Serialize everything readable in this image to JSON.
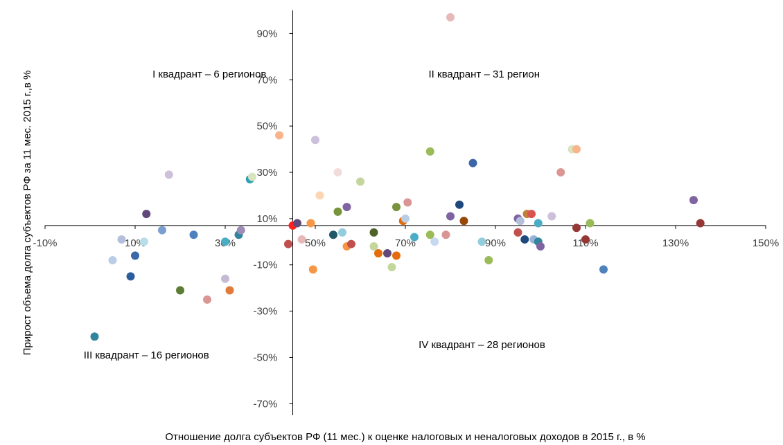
{
  "chart_data": {
    "type": "scatter",
    "xlabel": "Отношение долга субъектов РФ (11 мес.) к оценке налоговых и неналоговых доходов в 2015 г., в %",
    "ylabel": "Прирост объема долга субъектов РФ за 11 мес. 2015 г.,в %",
    "xlim": [
      -10,
      150
    ],
    "ylim": [
      -75,
      100
    ],
    "x_ticks": [
      -10,
      10,
      30,
      50,
      70,
      90,
      110,
      130,
      150
    ],
    "x_tick_labels": [
      "-10%",
      "10%",
      "30%",
      "50%",
      "70%",
      "90%",
      "110%",
      "130%",
      "150%"
    ],
    "y_ticks": [
      -70,
      -50,
      -30,
      -10,
      10,
      30,
      50,
      70,
      90
    ],
    "y_tick_labels": [
      "-70%",
      "-50%",
      "-30%",
      "-10%",
      "10%",
      "30%",
      "50%",
      "70%",
      "90%"
    ],
    "x_axis_crosses_y_at": 7,
    "y_axis_crosses_x_at": 45,
    "grid": false,
    "legend": "none",
    "quadrant_labels": [
      {
        "text": "I квадрант – 6 регионов",
        "x": 26.5,
        "y": 71
      },
      {
        "text": "II квадрант – 31 регион",
        "x": 87.5,
        "y": 71
      },
      {
        "text": "III квадрант – 16 регионов",
        "x": 12.5,
        "y": -50.5
      },
      {
        "text": "IV квадрант – 28 регионов",
        "x": 87,
        "y": -46
      }
    ],
    "points": [
      {
        "x": 1,
        "y": -41,
        "color": "#31859c"
      },
      {
        "x": 5,
        "y": -8,
        "color": "#b9cde5"
      },
      {
        "x": 7,
        "y": 1,
        "color": "#b3bfdb"
      },
      {
        "x": 9,
        "y": -15,
        "color": "#2e5d9e"
      },
      {
        "x": 10,
        "y": -6,
        "color": "#3b67a9"
      },
      {
        "x": 12,
        "y": 0,
        "color": "#b7dee8"
      },
      {
        "x": 12.5,
        "y": 12,
        "color": "#60497a"
      },
      {
        "x": 16,
        "y": 5,
        "color": "#7ba0cf"
      },
      {
        "x": 17.5,
        "y": 29,
        "color": "#ccc0da"
      },
      {
        "x": 20,
        "y": -21,
        "color": "#5b7d35"
      },
      {
        "x": 23,
        "y": 3,
        "color": "#4f81bd"
      },
      {
        "x": 26,
        "y": -25,
        "color": "#d99694"
      },
      {
        "x": 30,
        "y": -16,
        "color": "#c6b9d4"
      },
      {
        "x": 30,
        "y": 0,
        "color": "#4bacc6"
      },
      {
        "x": 31,
        "y": -21,
        "color": "#e07b39"
      },
      {
        "x": 33,
        "y": 3,
        "color": "#31859c"
      },
      {
        "x": 33.5,
        "y": 5,
        "color": "#9e8bb6"
      },
      {
        "x": 35.5,
        "y": 27,
        "color": "#2ea0b5"
      },
      {
        "x": 36,
        "y": 28,
        "color": "#d7e4bd"
      },
      {
        "x": 42,
        "y": 46,
        "color": "#fab48c"
      },
      {
        "x": 44,
        "y": -1,
        "color": "#c0504d"
      },
      {
        "x": 45,
        "y": 7,
        "color": "#ff2020"
      },
      {
        "x": 46,
        "y": 8,
        "color": "#604a7b"
      },
      {
        "x": 47,
        "y": 1,
        "color": "#e6b9b8"
      },
      {
        "x": 49.5,
        "y": -12,
        "color": "#f79646"
      },
      {
        "x": 49,
        "y": 8,
        "color": "#f79646"
      },
      {
        "x": 50,
        "y": 44,
        "color": "#ccc0da"
      },
      {
        "x": 51,
        "y": 20,
        "color": "#fcd5b5"
      },
      {
        "x": 54,
        "y": 3,
        "color": "#205867"
      },
      {
        "x": 55,
        "y": 13,
        "color": "#77933c"
      },
      {
        "x": 55,
        "y": 30,
        "color": "#f2dcdb"
      },
      {
        "x": 56,
        "y": 4,
        "color": "#93cddd"
      },
      {
        "x": 57,
        "y": 15,
        "color": "#8064a2"
      },
      {
        "x": 57,
        "y": -2,
        "color": "#f79646"
      },
      {
        "x": 58,
        "y": -1,
        "color": "#c0504d"
      },
      {
        "x": 60,
        "y": 26,
        "color": "#c3d69b"
      },
      {
        "x": 63,
        "y": 4,
        "color": "#4f6228"
      },
      {
        "x": 63,
        "y": -2,
        "color": "#c3d69b"
      },
      {
        "x": 64,
        "y": -5,
        "color": "#e46c0a"
      },
      {
        "x": 66,
        "y": -5,
        "color": "#604a7b"
      },
      {
        "x": 67,
        "y": -11,
        "color": "#c3d69b"
      },
      {
        "x": 68,
        "y": 15,
        "color": "#77933c"
      },
      {
        "x": 68,
        "y": -6,
        "color": "#e46c0a"
      },
      {
        "x": 69.5,
        "y": 9,
        "color": "#e46c0a"
      },
      {
        "x": 70,
        "y": 10,
        "color": "#b9cde5"
      },
      {
        "x": 70.5,
        "y": 17,
        "color": "#d99694"
      },
      {
        "x": 72,
        "y": 2,
        "color": "#4bacc6"
      },
      {
        "x": 75.5,
        "y": 39,
        "color": "#9bbb59"
      },
      {
        "x": 75.5,
        "y": 3,
        "color": "#9bbb59"
      },
      {
        "x": 76.5,
        "y": 0,
        "color": "#c6d9f1"
      },
      {
        "x": 79,
        "y": 3,
        "color": "#d99694"
      },
      {
        "x": 80,
        "y": 97,
        "color": "#e6b9b8"
      },
      {
        "x": 80,
        "y": 11,
        "color": "#8064a2"
      },
      {
        "x": 82,
        "y": 16,
        "color": "#1f497d"
      },
      {
        "x": 83,
        "y": 9,
        "color": "#974806"
      },
      {
        "x": 85,
        "y": 34,
        "color": "#3b67a9"
      },
      {
        "x": 87,
        "y": 0,
        "color": "#93cddd"
      },
      {
        "x": 88.5,
        "y": -8,
        "color": "#9bbb59"
      },
      {
        "x": 95,
        "y": 10,
        "color": "#8064a2"
      },
      {
        "x": 95,
        "y": 4,
        "color": "#c0504d"
      },
      {
        "x": 95.5,
        "y": 9,
        "color": "#b3bfdb"
      },
      {
        "x": 96.5,
        "y": 1,
        "color": "#1f497d"
      },
      {
        "x": 97,
        "y": 12,
        "color": "#c3803a"
      },
      {
        "x": 98,
        "y": 12,
        "color": "#d9534f"
      },
      {
        "x": 98.5,
        "y": 1,
        "color": "#95b3d7"
      },
      {
        "x": 99.5,
        "y": 8,
        "color": "#4bacc6"
      },
      {
        "x": 99.5,
        "y": 0,
        "color": "#31859c"
      },
      {
        "x": 100,
        "y": -2,
        "color": "#8064a2"
      },
      {
        "x": 102.5,
        "y": 11,
        "color": "#ccc0da"
      },
      {
        "x": 104.5,
        "y": 30,
        "color": "#d99694"
      },
      {
        "x": 107,
        "y": 40,
        "color": "#d7e4bd"
      },
      {
        "x": 108,
        "y": 40,
        "color": "#fab48c"
      },
      {
        "x": 108,
        "y": 6,
        "color": "#953735"
      },
      {
        "x": 110,
        "y": 1,
        "color": "#953735"
      },
      {
        "x": 111,
        "y": 8,
        "color": "#9bbb59"
      },
      {
        "x": 114,
        "y": -12,
        "color": "#4f81bd"
      },
      {
        "x": 134,
        "y": 18,
        "color": "#8064a2"
      },
      {
        "x": 135.5,
        "y": 8,
        "color": "#953735"
      }
    ]
  }
}
